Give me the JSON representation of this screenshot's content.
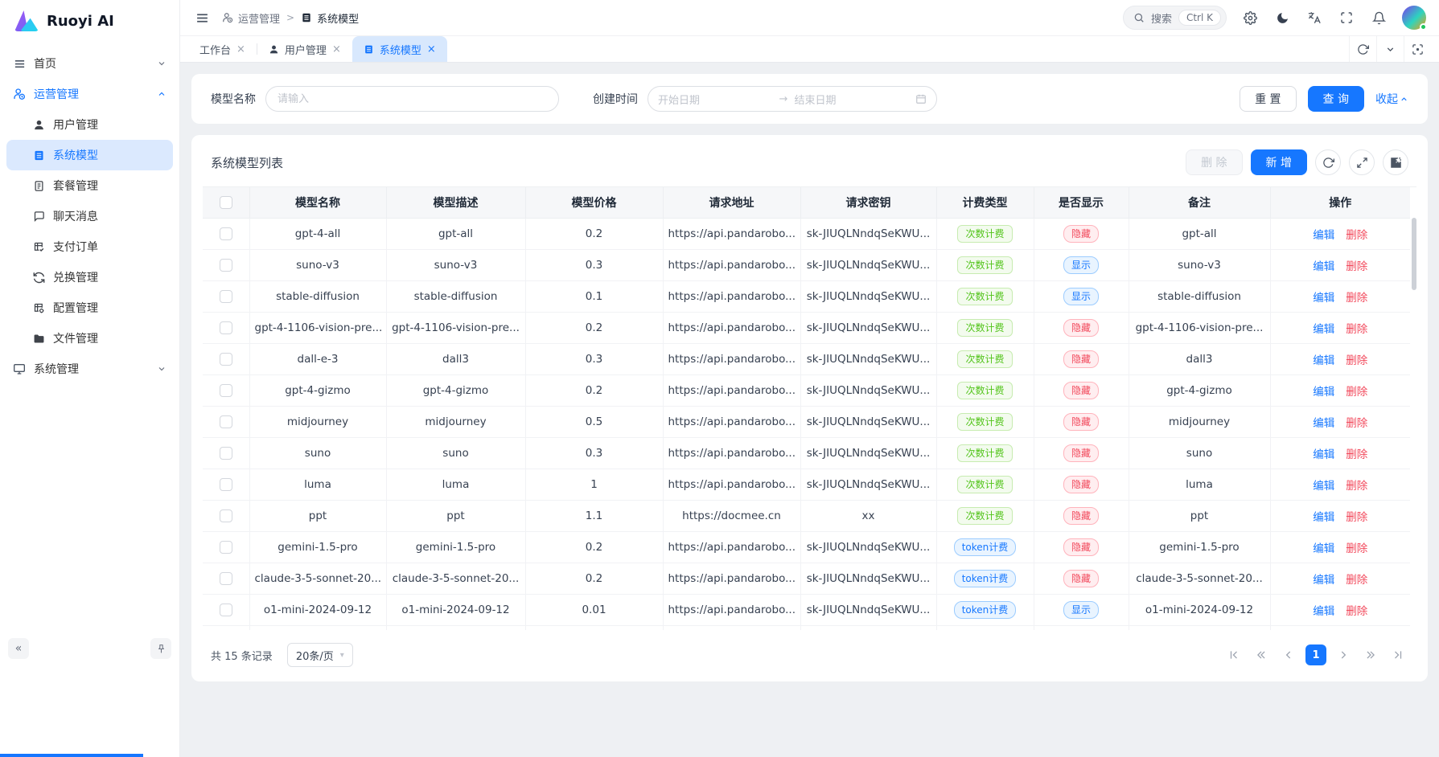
{
  "brand": {
    "name": "Ruoyi AI"
  },
  "colors": {
    "primary": "#1677ff",
    "badge_green": "#52c41a",
    "badge_red": "#f2495c",
    "selected_bg": "#dbe9fe"
  },
  "icons": {
    "close": "×",
    "range_arrow": "→",
    "collapse": "«",
    "dropdown": "▾",
    "breadcrumb_sep": ">"
  },
  "sidebar": {
    "items": [
      {
        "label": "首页"
      },
      {
        "label": "运营管理"
      },
      {
        "label": "用户管理"
      },
      {
        "label": "系统模型"
      },
      {
        "label": "套餐管理"
      },
      {
        "label": "聊天消息"
      },
      {
        "label": "支付订单"
      },
      {
        "label": "兑换管理"
      },
      {
        "label": "配置管理"
      },
      {
        "label": "文件管理"
      },
      {
        "label": "系统管理"
      }
    ]
  },
  "header": {
    "breadcrumb": [
      "运营管理",
      "系统模型"
    ],
    "search": {
      "placeholder": "搜索",
      "shortcut": "Ctrl K"
    }
  },
  "tabs": {
    "items": [
      {
        "label": "工作台",
        "active": false
      },
      {
        "label": "用户管理",
        "active": false
      },
      {
        "label": "系统模型",
        "active": true
      }
    ]
  },
  "filter": {
    "model_name_label": "模型名称",
    "model_name_placeholder": "请输入",
    "create_time_label": "创建时间",
    "start_placeholder": "开始日期",
    "end_placeholder": "结束日期",
    "reset_label": "重 置",
    "query_label": "查 询",
    "collapse_label": "收起"
  },
  "table": {
    "title": "系统模型列表",
    "delete_label": "删 除",
    "add_label": "新 增",
    "edit": "编辑",
    "del": "删除",
    "columns": [
      "模型名称",
      "模型描述",
      "模型价格",
      "请求地址",
      "请求密钥",
      "计费类型",
      "是否显示",
      "备注",
      "操作"
    ],
    "rows": [
      {
        "name": "gpt-4-all",
        "desc": "gpt-all",
        "price": "0.2",
        "url": "https://api.pandarobo...",
        "key": "sk-JIUQLNndqSeKWU...",
        "billing": "次数计费",
        "billing_type": "count",
        "visibility": "隐藏",
        "visibility_type": "hidden",
        "note": "gpt-all"
      },
      {
        "name": "suno-v3",
        "desc": "suno-v3",
        "price": "0.3",
        "url": "https://api.pandarobo...",
        "key": "sk-JIUQLNndqSeKWU...",
        "billing": "次数计费",
        "billing_type": "count",
        "visibility": "显示",
        "visibility_type": "shown",
        "note": "suno-v3"
      },
      {
        "name": "stable-diffusion",
        "desc": "stable-diffusion",
        "price": "0.1",
        "url": "https://api.pandarobo...",
        "key": "sk-JIUQLNndqSeKWU...",
        "billing": "次数计费",
        "billing_type": "count",
        "visibility": "显示",
        "visibility_type": "shown",
        "note": "stable-diffusion"
      },
      {
        "name": "gpt-4-1106-vision-pre...",
        "desc": "gpt-4-1106-vision-pre...",
        "price": "0.2",
        "url": "https://api.pandarobo...",
        "key": "sk-JIUQLNndqSeKWU...",
        "billing": "次数计费",
        "billing_type": "count",
        "visibility": "隐藏",
        "visibility_type": "hidden",
        "note": "gpt-4-1106-vision-pre..."
      },
      {
        "name": "dall-e-3",
        "desc": "dall3",
        "price": "0.3",
        "url": "https://api.pandarobo...",
        "key": "sk-JIUQLNndqSeKWU...",
        "billing": "次数计费",
        "billing_type": "count",
        "visibility": "隐藏",
        "visibility_type": "hidden",
        "note": "dall3"
      },
      {
        "name": "gpt-4-gizmo",
        "desc": "gpt-4-gizmo",
        "price": "0.2",
        "url": "https://api.pandarobo...",
        "key": "sk-JIUQLNndqSeKWU...",
        "billing": "次数计费",
        "billing_type": "count",
        "visibility": "隐藏",
        "visibility_type": "hidden",
        "note": "gpt-4-gizmo"
      },
      {
        "name": "midjourney",
        "desc": "midjourney",
        "price": "0.5",
        "url": "https://api.pandarobo...",
        "key": "sk-JIUQLNndqSeKWU...",
        "billing": "次数计费",
        "billing_type": "count",
        "visibility": "隐藏",
        "visibility_type": "hidden",
        "note": "midjourney"
      },
      {
        "name": "suno",
        "desc": "suno",
        "price": "0.3",
        "url": "https://api.pandarobo...",
        "key": "sk-JIUQLNndqSeKWU...",
        "billing": "次数计费",
        "billing_type": "count",
        "visibility": "隐藏",
        "visibility_type": "hidden",
        "note": "suno"
      },
      {
        "name": "luma",
        "desc": "luma",
        "price": "1",
        "url": "https://api.pandarobo...",
        "key": "sk-JIUQLNndqSeKWU...",
        "billing": "次数计费",
        "billing_type": "count",
        "visibility": "隐藏",
        "visibility_type": "hidden",
        "note": "luma"
      },
      {
        "name": "ppt",
        "desc": "ppt",
        "price": "1.1",
        "url": "https://docmee.cn",
        "key": "xx",
        "billing": "次数计费",
        "billing_type": "count",
        "visibility": "隐藏",
        "visibility_type": "hidden",
        "note": "ppt"
      },
      {
        "name": "gemini-1.5-pro",
        "desc": "gemini-1.5-pro",
        "price": "0.2",
        "url": "https://api.pandarobo...",
        "key": "sk-JIUQLNndqSeKWU...",
        "billing": "token计费",
        "billing_type": "token",
        "visibility": "隐藏",
        "visibility_type": "hidden",
        "note": "gemini-1.5-pro"
      },
      {
        "name": "claude-3-5-sonnet-20...",
        "desc": "claude-3-5-sonnet-20...",
        "price": "0.2",
        "url": "https://api.pandarobo...",
        "key": "sk-JIUQLNndqSeKWU...",
        "billing": "token计费",
        "billing_type": "token",
        "visibility": "隐藏",
        "visibility_type": "hidden",
        "note": "claude-3-5-sonnet-20..."
      },
      {
        "name": "o1-mini-2024-09-12",
        "desc": "o1-mini-2024-09-12",
        "price": "0.01",
        "url": "https://api.pandarobo...",
        "key": "sk-JIUQLNndqSeKWU...",
        "billing": "token计费",
        "billing_type": "token",
        "visibility": "显示",
        "visibility_type": "shown",
        "note": "o1-mini-2024-09-12"
      }
    ]
  },
  "pagination": {
    "total_label": "共 15 条记录",
    "page_size": "20条/页",
    "current": "1"
  }
}
